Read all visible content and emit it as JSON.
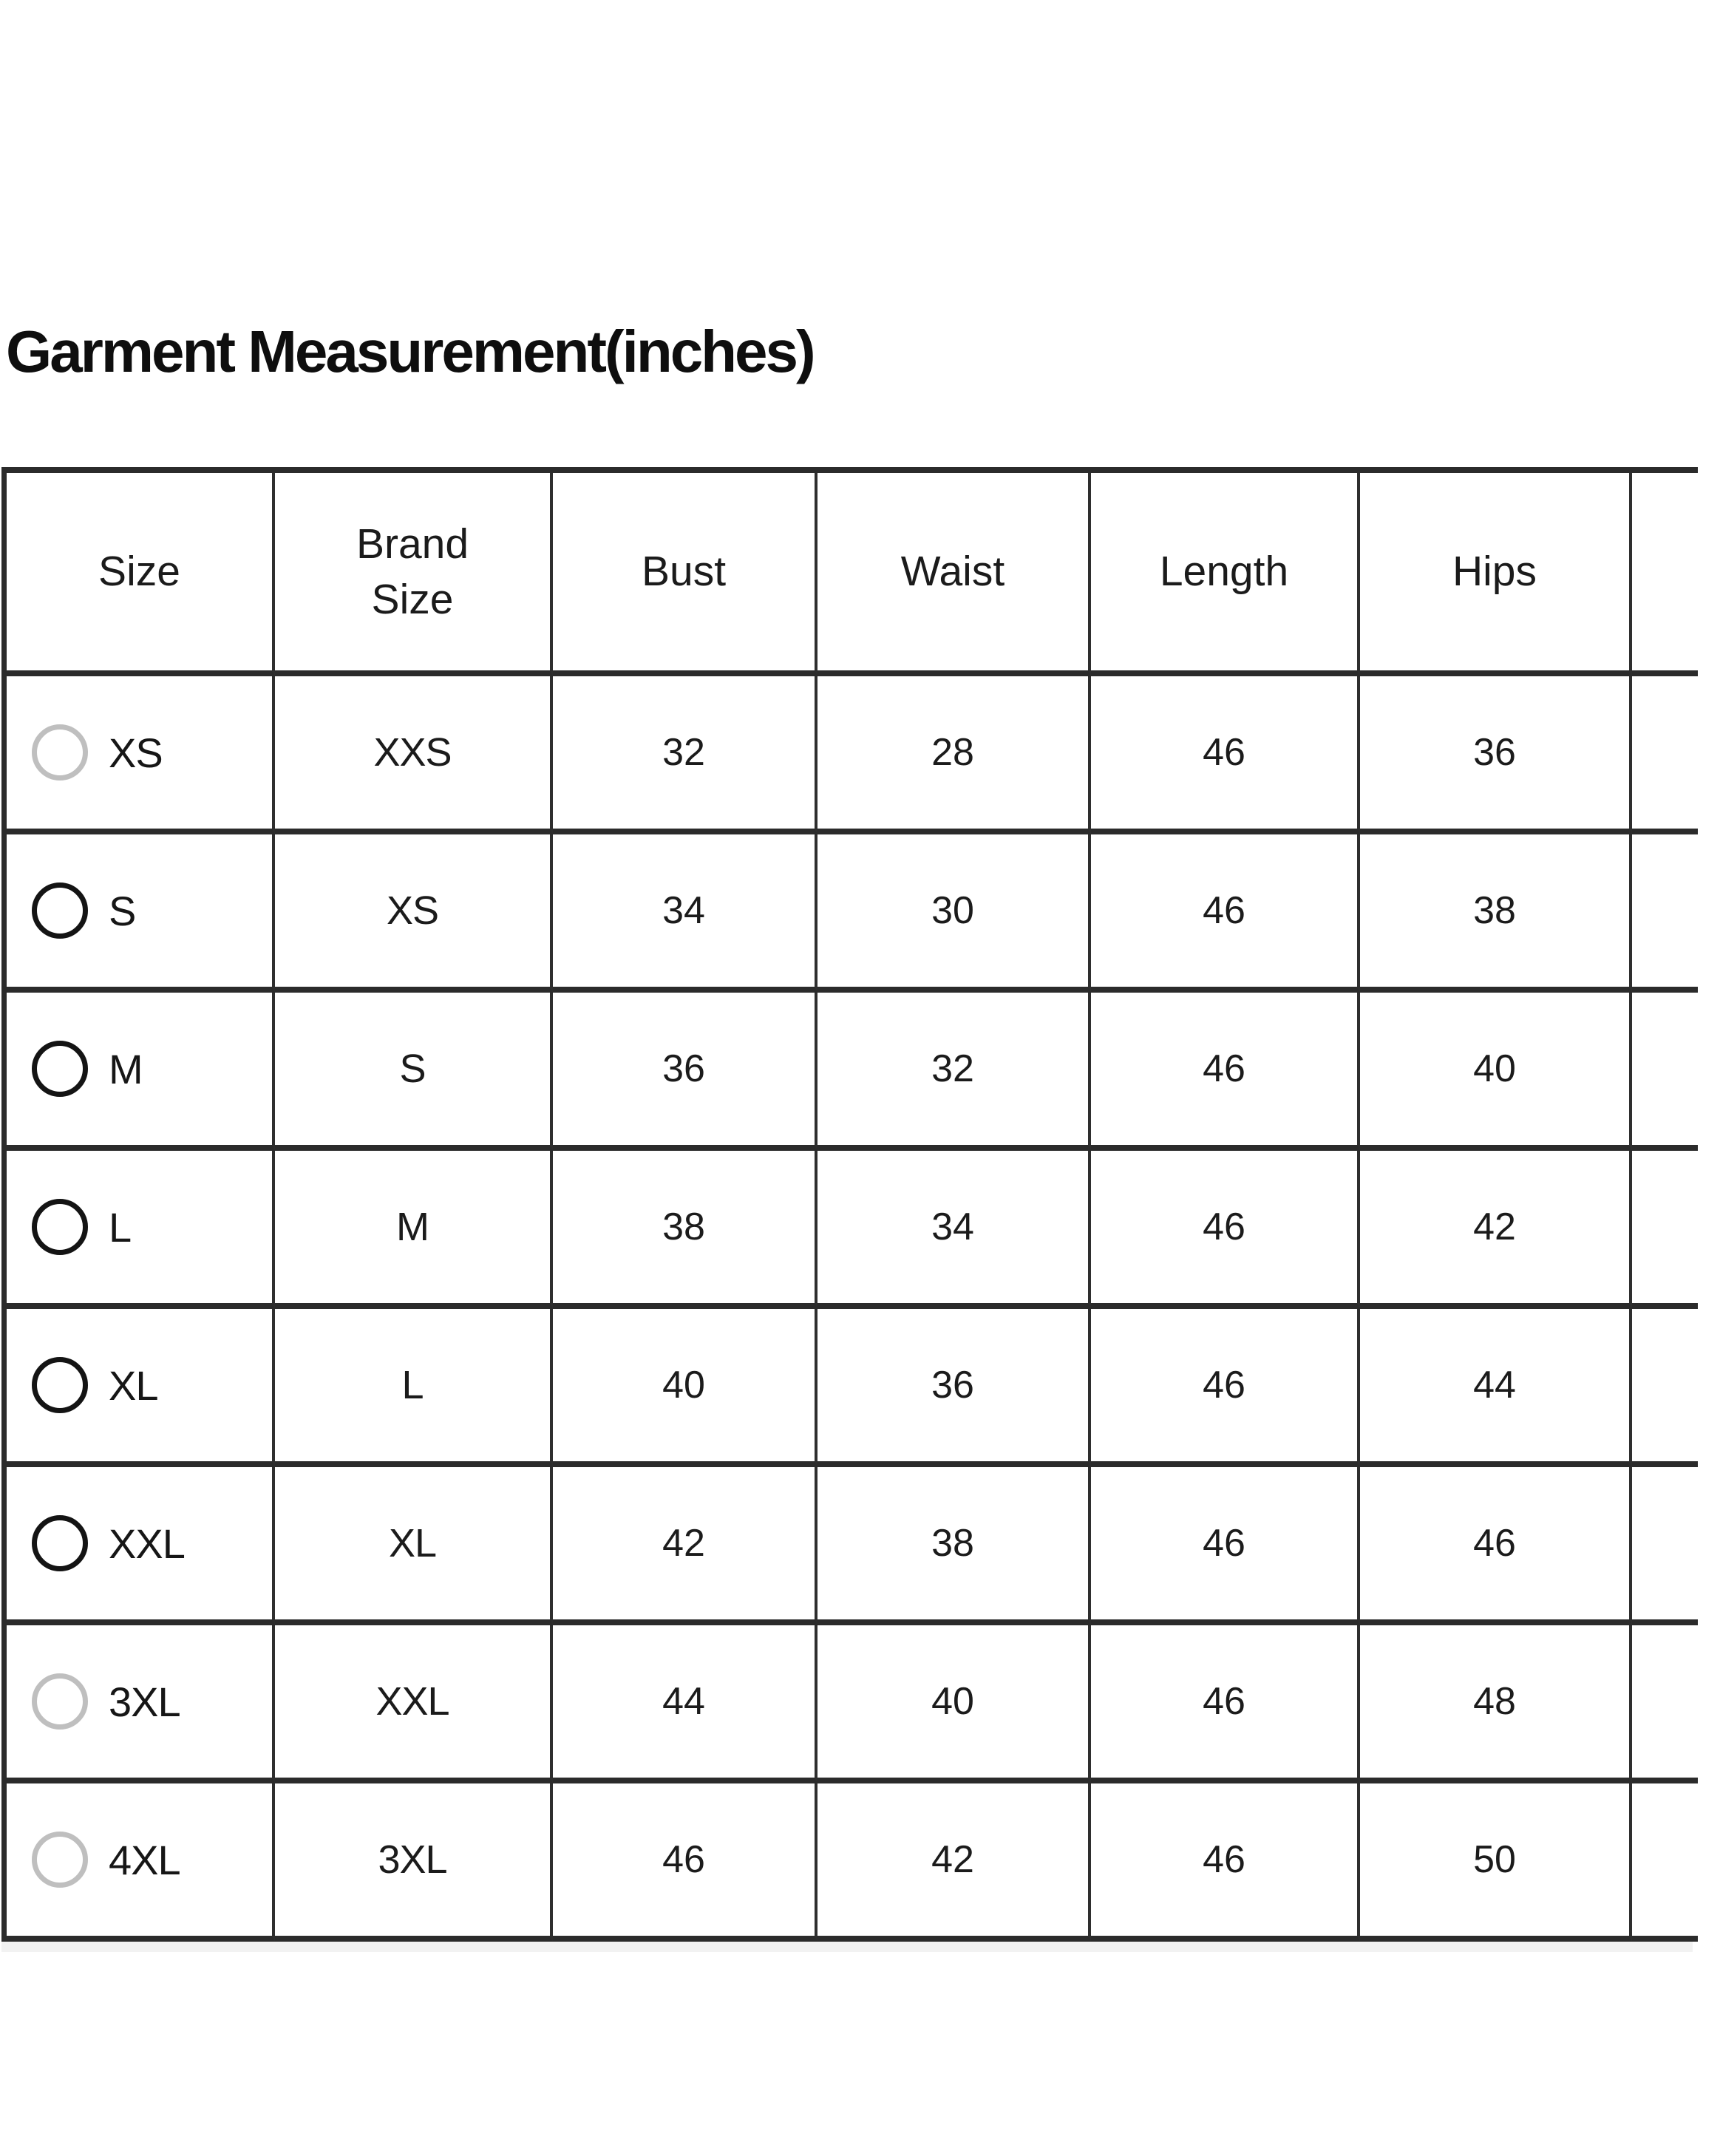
{
  "title": "Garment Measurement(inches)",
  "table": {
    "headers": [
      "Size",
      "Brand\nSize",
      "Bust",
      "Waist",
      "Length",
      "Hips",
      ""
    ],
    "rows": [
      {
        "size": "XS",
        "brand_size": "XXS",
        "bust": "32",
        "waist": "28",
        "length": "46",
        "hips": "36",
        "radio_state": "disabled"
      },
      {
        "size": "S",
        "brand_size": "XS",
        "bust": "34",
        "waist": "30",
        "length": "46",
        "hips": "38",
        "radio_state": "enabled"
      },
      {
        "size": "M",
        "brand_size": "S",
        "bust": "36",
        "waist": "32",
        "length": "46",
        "hips": "40",
        "radio_state": "enabled"
      },
      {
        "size": "L",
        "brand_size": "M",
        "bust": "38",
        "waist": "34",
        "length": "46",
        "hips": "42",
        "radio_state": "enabled"
      },
      {
        "size": "XL",
        "brand_size": "L",
        "bust": "40",
        "waist": "36",
        "length": "46",
        "hips": "44",
        "radio_state": "enabled"
      },
      {
        "size": "XXL",
        "brand_size": "XL",
        "bust": "42",
        "waist": "38",
        "length": "46",
        "hips": "46",
        "radio_state": "enabled"
      },
      {
        "size": "3XL",
        "brand_size": "XXL",
        "bust": "44",
        "waist": "40",
        "length": "46",
        "hips": "48",
        "radio_state": "disabled"
      },
      {
        "size": "4XL",
        "brand_size": "3XL",
        "bust": "46",
        "waist": "42",
        "length": "46",
        "hips": "50",
        "radio_state": "disabled"
      }
    ]
  },
  "colors": {
    "border": "#2b2b2b",
    "text": "#1b1b1b",
    "radio_enabled": "#141414",
    "radio_disabled": "#bfbfbf",
    "bottom_strip": "#f2f2f2"
  }
}
